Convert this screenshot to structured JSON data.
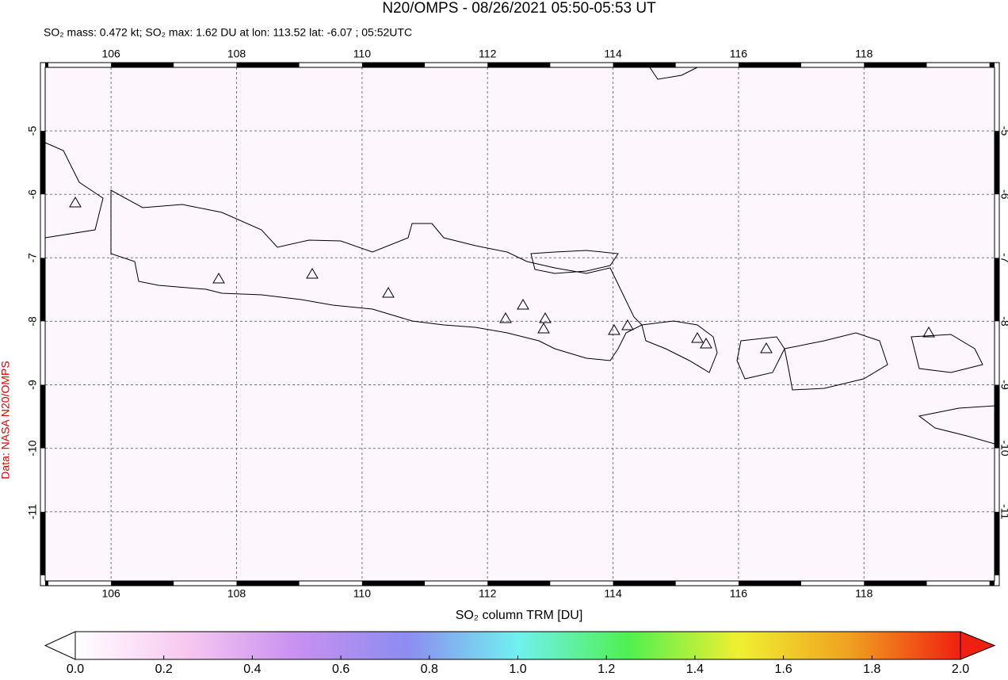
{
  "chart_data": {
    "type": "map",
    "title": "N20/OMPS - 08/26/2021 05:50-05:53 UT",
    "subtitle": "SO₂ mass: 0.472 kt; SO₂ max: 1.62 DU at lon: 113.52 lat: -6.07 ; 05:52UTC",
    "credit": "Data: NASA N20/OMPS",
    "xlim": [
      104.95,
      120.08
    ],
    "ylim": [
      -12.09,
      -4.0
    ],
    "xticks": [
      106,
      108,
      110,
      112,
      114,
      116,
      118
    ],
    "yticks": [
      -5,
      -6,
      -7,
      -8,
      -9,
      -10,
      -11
    ],
    "grid": true,
    "colorbar": {
      "label": "SO₂ column TRM [DU]",
      "lim": [
        0,
        2
      ],
      "ticks": [
        {
          "value": 0,
          "label": "0.0"
        },
        {
          "value": 0.2,
          "label": "0.2"
        },
        {
          "value": 0.4,
          "label": "0.4"
        },
        {
          "value": 0.6,
          "label": "0.6"
        },
        {
          "value": 0.8,
          "label": "0.8"
        },
        {
          "value": 1,
          "label": "1.0"
        },
        {
          "value": 1.2,
          "label": "1.2"
        },
        {
          "value": 1.4,
          "label": "1.4"
        },
        {
          "value": 1.6,
          "label": "1.6"
        },
        {
          "value": 1.8,
          "label": "1.8"
        },
        {
          "value": 2,
          "label": "2.0"
        }
      ],
      "colors": [
        "#ffffff",
        "#f7c8f0",
        "#c890f0",
        "#8c8cf0",
        "#70f0f0",
        "#50f050",
        "#f0f030",
        "#f0a020",
        "#f02010"
      ]
    }
  }
}
